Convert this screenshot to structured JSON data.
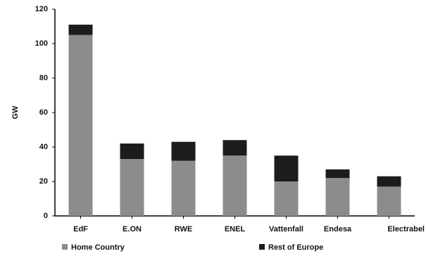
{
  "chart_data": {
    "type": "stacked_bar",
    "y_label": "GW",
    "categories": [
      "EdF",
      "E.ON",
      "RWE",
      "ENEL",
      "Vattenfall",
      "Endesa",
      "Electrabel"
    ],
    "series": [
      {
        "name": "Home Country",
        "color": "#8c8c8c",
        "values": [
          105,
          33,
          32,
          35,
          20,
          22,
          17
        ]
      },
      {
        "name": "Rest of Europe",
        "color": "#1c1c1c",
        "values": [
          6,
          9,
          11,
          9,
          15,
          5,
          6
        ]
      }
    ],
    "ylim": [
      0,
      120
    ],
    "yticks": [
      0,
      20,
      40,
      60,
      80,
      100,
      120
    ],
    "grid": false
  }
}
